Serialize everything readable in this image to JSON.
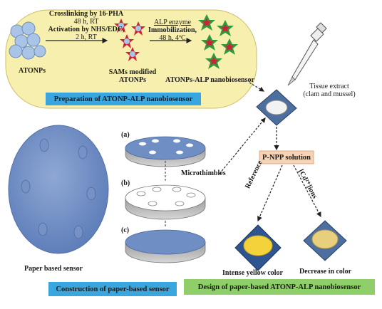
{
  "top_panel": {
    "step1_line1": "Crosslinking by 16-PHA",
    "step1_line2": "48 h, RT",
    "step1_line3": "Activation by NHS/EDC,",
    "step1_line4": "2 h, RT",
    "step2_line1": "ALP enzyme",
    "step2_line2": "Immobilization,",
    "step2_line3": "48 h, 4ºC",
    "atonps": "ATONPs",
    "sams_line1": "SAMs modified",
    "sams_line2": "ATONPs",
    "nanobiosensor": "ATONPs-ALP nanobiosensor",
    "banner": "Preparation of ATONP-ALP nanobiosensor"
  },
  "sample": {
    "tissue_line1": "Tissue extract",
    "tissue_line2": "(clam and mussel)"
  },
  "construction": {
    "label_a": "(a)",
    "label_b": "(b)",
    "label_c": "(c)",
    "microthimbles": "Microthimbles",
    "paper_sensor": "Paper based sensor",
    "banner": "Construction of paper-based sensor"
  },
  "design": {
    "pnpp": "P-NPP solution",
    "reference": "Reference",
    "cd_ions": "[Cd²⁺]ions",
    "intense": "Intense yellow color",
    "decrease": "Decrease in color",
    "banner": "Design of paper-based ATONP-ALP nanobiosensor"
  },
  "colors": {
    "yellow_panel": "#f7efad",
    "blue_banner": "#3aa6df",
    "green_banner": "#8fcf6a",
    "pnpp_box": "#f6d2b6",
    "disk_blue": "#6f8fc4",
    "nanoparticle": "#a9c4e6",
    "sam_red": "#c9243a",
    "alp_green": "#2f9a3c"
  }
}
